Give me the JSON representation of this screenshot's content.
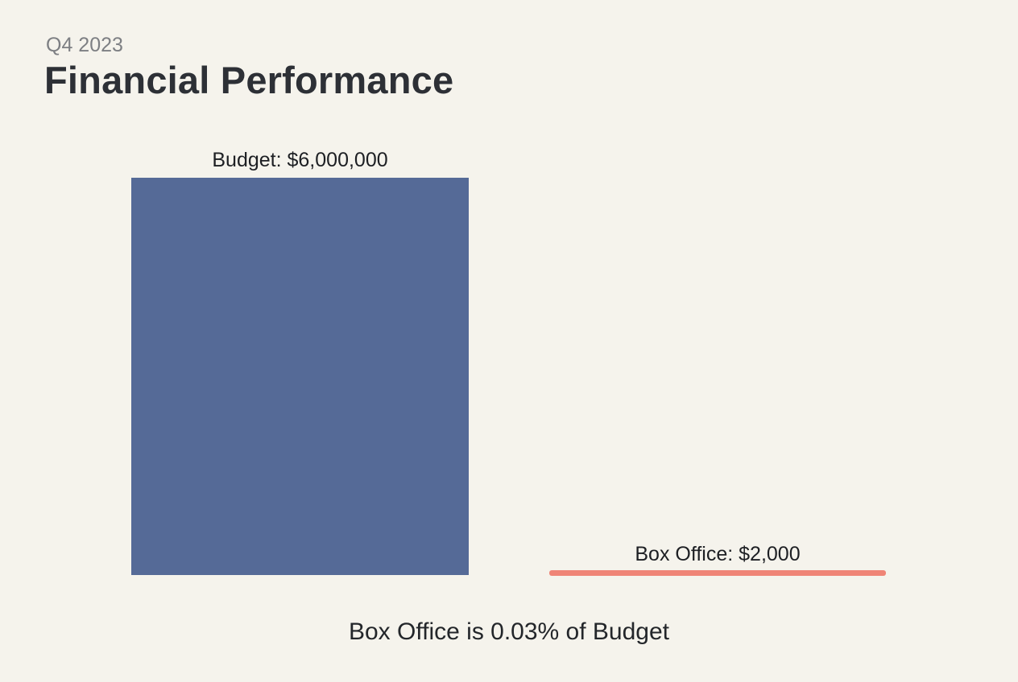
{
  "header": {
    "subtitle": "Q4 2023",
    "title": "Financial Performance"
  },
  "chart": {
    "budget_label": "Budget: $6,000,000",
    "box_office_label": "Box Office: $2,000",
    "caption": "Box Office is 0.03% of Budget"
  },
  "colors": {
    "background": "#f5f3ec",
    "budget_bar": "#556a97",
    "box_office_bar": "#ef8476",
    "title_text": "#2d3036",
    "subtitle_text": "#7d7f83",
    "label_text": "#1d1f23"
  },
  "chart_data": {
    "type": "bar",
    "categories": [
      "Budget",
      "Box Office"
    ],
    "values": [
      6000000,
      2000
    ],
    "value_labels": [
      "Budget: $6,000,000",
      "Box Office: $2,000"
    ],
    "title": "Financial Performance",
    "subtitle": "Q4 2023",
    "caption": "Box Office is 0.03% of Budget",
    "percentage_of_budget": "0.03%",
    "series_colors": [
      "#556a97",
      "#ef8476"
    ],
    "orientation": "vertical",
    "grid": false,
    "legend": false,
    "axes_visible": false
  }
}
